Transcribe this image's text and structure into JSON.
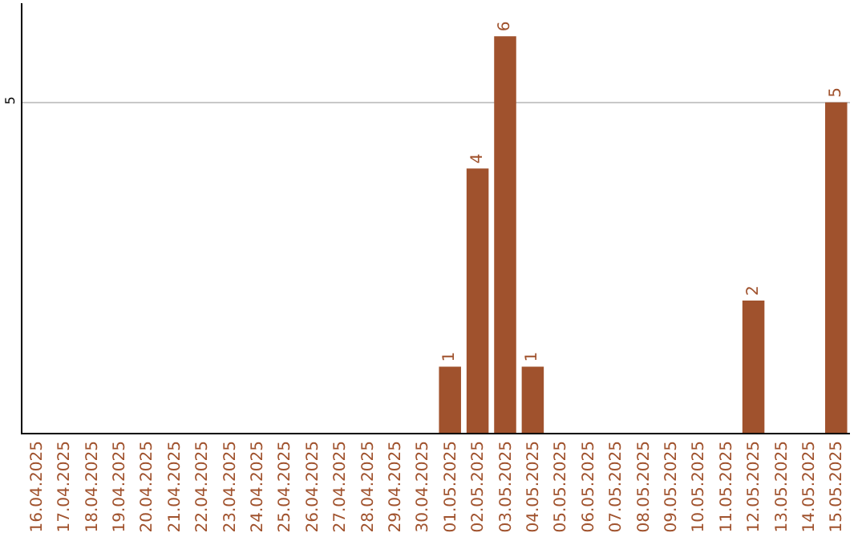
{
  "chart_data": {
    "type": "bar",
    "data_labels": true,
    "ylim": [
      0,
      6.5
    ],
    "yticks": [
      5
    ],
    "grid": "y",
    "categories": [
      "16.04.2025",
      "17.04.2025",
      "18.04.2025",
      "19.04.2025",
      "20.04.2025",
      "21.04.2025",
      "22.04.2025",
      "23.04.2025",
      "24.04.2025",
      "25.04.2025",
      "26.04.2025",
      "27.04.2025",
      "28.04.2025",
      "29.04.2025",
      "30.04.2025",
      "01.05.2025",
      "02.05.2025",
      "03.05.2025",
      "04.05.2025",
      "05.05.2025",
      "06.05.2025",
      "07.05.2025",
      "08.05.2025",
      "09.05.2025",
      "10.05.2025",
      "11.05.2025",
      "12.05.2025",
      "13.05.2025",
      "14.05.2025",
      "15.05.2025"
    ],
    "values": [
      null,
      null,
      null,
      null,
      null,
      null,
      null,
      null,
      null,
      null,
      null,
      null,
      null,
      null,
      null,
      1,
      4,
      6,
      1,
      null,
      null,
      null,
      null,
      null,
      null,
      null,
      2,
      null,
      null,
      5
    ],
    "color": "#a0522d"
  }
}
